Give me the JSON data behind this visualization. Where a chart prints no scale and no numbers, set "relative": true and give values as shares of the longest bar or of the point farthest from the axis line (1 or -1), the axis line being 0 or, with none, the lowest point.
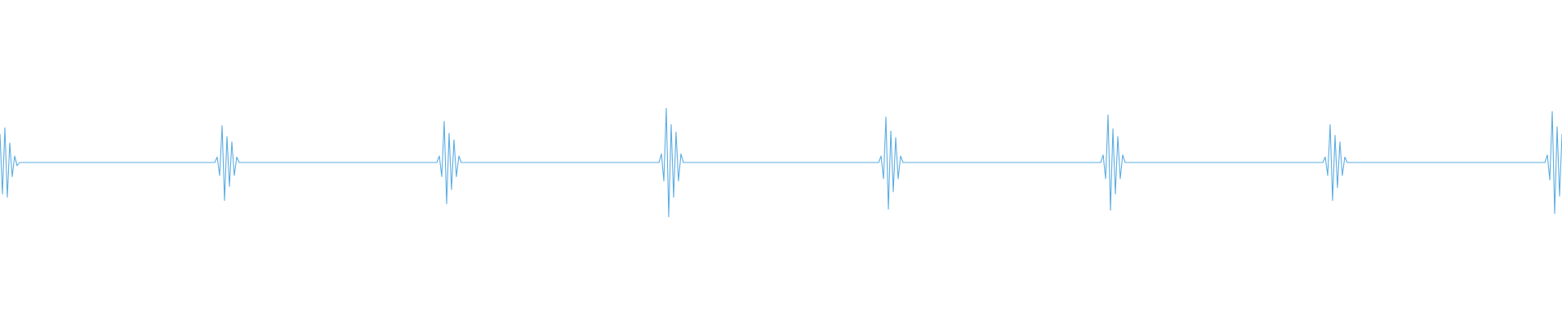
{
  "chart_data": {
    "type": "line",
    "relative": true,
    "color": "#5dade2",
    "categories": [
      null,
      null,
      null,
      null,
      null,
      null,
      null,
      null,
      null,
      null,
      null,
      null,
      null,
      null,
      null,
      null,
      null,
      null,
      null,
      null,
      null,
      null,
      null,
      null,
      null,
      null,
      null,
      null,
      null,
      null,
      null,
      null,
      null,
      null,
      null,
      null,
      null,
      null,
      null,
      null,
      null,
      null,
      null,
      null,
      null,
      null,
      null,
      null,
      null,
      null,
      null,
      null,
      null,
      null,
      null,
      null,
      null,
      null,
      null,
      null,
      null,
      null,
      null,
      null,
      null,
      null,
      null,
      null,
      null,
      null,
      null,
      null,
      null,
      null,
      null,
      null,
      null,
      null,
      null,
      null,
      null,
      null,
      null,
      null,
      null,
      null,
      null,
      null,
      null,
      null,
      null,
      null,
      null,
      null,
      null,
      null,
      null,
      null,
      null,
      null,
      null,
      null,
      null,
      null,
      null,
      null,
      null,
      null,
      null,
      null,
      null,
      null,
      null,
      null,
      null,
      null,
      null,
      null,
      null,
      null,
      null,
      null,
      null,
      null,
      null,
      null,
      null,
      null,
      null,
      null,
      null,
      null,
      null,
      null,
      null,
      null,
      null,
      null,
      null,
      null,
      null,
      null,
      null,
      null,
      null,
      null,
      null,
      null,
      null,
      null,
      null,
      null,
      null,
      null,
      null,
      null,
      null,
      null,
      null,
      null,
      null,
      null,
      null,
      null,
      null,
      null,
      null,
      null,
      null,
      null,
      null,
      null,
      null,
      null,
      null,
      null,
      null,
      null,
      null,
      null,
      null,
      null,
      null,
      null,
      null,
      null,
      null,
      null,
      null,
      null,
      null,
      null,
      null,
      null,
      null,
      null,
      null,
      null,
      null,
      null,
      null,
      null,
      null,
      null,
      null,
      null,
      null,
      null,
      null,
      null,
      null,
      null,
      null,
      null,
      null,
      null,
      null,
      null,
      null,
      null,
      null,
      null,
      null,
      null,
      null,
      null,
      null,
      null,
      null,
      null,
      null,
      null,
      null,
      null,
      null,
      null,
      null,
      null,
      null,
      null,
      null,
      null,
      null,
      null,
      null,
      null,
      null,
      null,
      null,
      null,
      null,
      null,
      null,
      null,
      null,
      null,
      null,
      null,
      null,
      null,
      null,
      null,
      null,
      null,
      null,
      null,
      null,
      null,
      null,
      null,
      null,
      null,
      null,
      null,
      null,
      null,
      null,
      null,
      null,
      null,
      null,
      null,
      null,
      null,
      null,
      null,
      null,
      null,
      null,
      null,
      null,
      null,
      null,
      null,
      null,
      null,
      null,
      null,
      null,
      null,
      null,
      null,
      null,
      null,
      null,
      null,
      null,
      null,
      null,
      null,
      null,
      null,
      null,
      null,
      null,
      null,
      null,
      null,
      null,
      null,
      null,
      null,
      null,
      null,
      null,
      null,
      null,
      null,
      null,
      null,
      null,
      null,
      null,
      null,
      null,
      null,
      null,
      null,
      null,
      null,
      null,
      null,
      null,
      null,
      null,
      null,
      null,
      null,
      null,
      null,
      null,
      null,
      null,
      null,
      null,
      null,
      null,
      null,
      null,
      null,
      null,
      null,
      null,
      null,
      null,
      null,
      null,
      null,
      null,
      null,
      null,
      null,
      null,
      null,
      null,
      null,
      null,
      null,
      null,
      null,
      null,
      null,
      null,
      null,
      null,
      null,
      null,
      null,
      null,
      null,
      null,
      null,
      null,
      null,
      null,
      null,
      null,
      null,
      null,
      null,
      null,
      null,
      null,
      null,
      null,
      null,
      null,
      null,
      null,
      null,
      null,
      null,
      null,
      null,
      null,
      null,
      null,
      null,
      null,
      null,
      null,
      null,
      null,
      null,
      null,
      null,
      null,
      null,
      null,
      null,
      null,
      null,
      null,
      null,
      null,
      null,
      null,
      null,
      null,
      null,
      null,
      null,
      null,
      null,
      null,
      null,
      null,
      null,
      null,
      null,
      null,
      null,
      null,
      null,
      null,
      null,
      null,
      null,
      null,
      null,
      null,
      null,
      null,
      null,
      null,
      null,
      null,
      null,
      null,
      null,
      null,
      null,
      null,
      null,
      null,
      null,
      null,
      null,
      null,
      null,
      null,
      null,
      null,
      null,
      null,
      null,
      null,
      null,
      null,
      null,
      null,
      null,
      null,
      null,
      null,
      null,
      null,
      null,
      null,
      null,
      null,
      null,
      null,
      null,
      null,
      null,
      null,
      null,
      null,
      null,
      null,
      null,
      null,
      null,
      null,
      null,
      null,
      null,
      null,
      null,
      null,
      null,
      null,
      null,
      null,
      null,
      null,
      null,
      null,
      null,
      null,
      null,
      null,
      null,
      null,
      null,
      null,
      null,
      null,
      null,
      null,
      null,
      null,
      null,
      null,
      null,
      null,
      null,
      null,
      null,
      null,
      null,
      null,
      null,
      null,
      null,
      null,
      null,
      null,
      null,
      null,
      null,
      null,
      null,
      null,
      null,
      null,
      null,
      null,
      null,
      null,
      null,
      null,
      null,
      null,
      null,
      null,
      null,
      null,
      null,
      null,
      null,
      null,
      null,
      null,
      null,
      null,
      null,
      null,
      null,
      null,
      null,
      null,
      null,
      null,
      null,
      null,
      null,
      null,
      null,
      null,
      null,
      null,
      null,
      null,
      null,
      null,
      null,
      null,
      null,
      null,
      null,
      null,
      null,
      null,
      null,
      null,
      null,
      null,
      null,
      null,
      null,
      null,
      null,
      null,
      null,
      null,
      null,
      null,
      null,
      null,
      null,
      null,
      null,
      null,
      null,
      null,
      null,
      null,
      null,
      null
    ],
    "values": [
      0.76,
      0.21,
      0.82,
      0.18,
      0.68,
      0.37,
      0.56,
      0.47,
      0.5,
      0.5,
      0.5,
      0.5,
      0.5,
      0.5,
      0.5,
      0.5,
      0.5,
      0.5,
      0.5,
      0.5,
      0.5,
      0.5,
      0.5,
      0.5,
      0.5,
      0.5,
      0.5,
      0.5,
      0.5,
      0.5,
      0.5,
      0.5,
      0.5,
      0.5,
      0.5,
      0.5,
      0.5,
      0.5,
      0.5,
      0.5,
      0.5,
      0.5,
      0.5,
      0.5,
      0.5,
      0.5,
      0.5,
      0.5,
      0.5,
      0.5,
      0.5,
      0.5,
      0.5,
      0.5,
      0.5,
      0.5,
      0.5,
      0.5,
      0.5,
      0.5,
      0.5,
      0.5,
      0.5,
      0.5,
      0.5,
      0.5,
      0.5,
      0.5,
      0.5,
      0.5,
      0.5,
      0.5,
      0.5,
      0.5,
      0.5,
      0.5,
      0.5,
      0.5,
      0.5,
      0.5,
      0.5,
      0.5,
      0.5,
      0.5,
      0.5,
      0.5,
      0.5,
      0.5,
      0.5,
      0.55,
      0.38,
      0.84,
      0.15,
      0.74,
      0.28,
      0.69,
      0.38,
      0.55,
      0.5,
      0.5,
      0.5,
      0.5,
      0.5,
      0.5,
      0.5,
      0.5,
      0.5,
      0.5,
      0.5,
      0.5,
      0.5,
      0.5,
      0.5,
      0.5,
      0.5,
      0.5,
      0.5,
      0.5,
      0.5,
      0.5,
      0.5,
      0.5,
      0.5,
      0.5,
      0.5,
      0.5,
      0.5,
      0.5,
      0.5,
      0.5,
      0.5,
      0.5,
      0.5,
      0.5,
      0.5,
      0.5,
      0.5,
      0.5,
      0.5,
      0.5,
      0.5,
      0.5,
      0.5,
      0.5,
      0.5,
      0.5,
      0.5,
      0.5,
      0.5,
      0.5,
      0.5,
      0.5,
      0.5,
      0.5,
      0.5,
      0.5,
      0.5,
      0.5,
      0.5,
      0.5,
      0.5,
      0.5,
      0.5,
      0.5,
      0.5,
      0.5,
      0.5,
      0.5,
      0.5,
      0.5,
      0.5,
      0.5,
      0.5,
      0.5,
      0.5,
      0.5,
      0.5,
      0.5,
      0.5,
      0.5,
      0.56,
      0.37,
      0.88,
      0.12,
      0.77,
      0.25,
      0.71,
      0.37,
      0.56,
      0.5,
      0.5,
      0.5,
      0.5,
      0.5,
      0.5,
      0.5,
      0.5,
      0.5,
      0.5,
      0.5,
      0.5,
      0.5,
      0.5,
      0.5,
      0.5,
      0.5,
      0.5,
      0.5,
      0.5,
      0.5,
      0.5,
      0.5,
      0.5,
      0.5,
      0.5,
      0.5,
      0.5,
      0.5,
      0.5,
      0.5,
      0.5,
      0.5,
      0.5,
      0.5,
      0.5,
      0.5,
      0.5,
      0.5,
      0.5,
      0.5,
      0.5,
      0.5,
      0.5,
      0.5,
      0.5,
      0.5,
      0.5,
      0.5,
      0.5,
      0.5,
      0.5,
      0.5,
      0.5,
      0.5,
      0.5,
      0.5,
      0.5,
      0.5,
      0.5,
      0.5,
      0.5,
      0.5,
      0.5,
      0.5,
      0.5,
      0.5,
      0.5,
      0.5,
      0.5,
      0.5,
      0.5,
      0.5,
      0.5,
      0.5,
      0.5,
      0.5,
      0.5,
      0.5,
      0.5,
      0.5,
      0.5,
      0.58,
      0.33,
      1,
      0,
      0.85,
      0.18,
      0.78,
      0.33,
      0.58,
      0.5,
      0.5,
      0.5,
      0.5,
      0.5,
      0.5,
      0.5,
      0.5,
      0.5,
      0.5,
      0.5,
      0.5,
      0.5,
      0.5,
      0.5,
      0.5,
      0.5,
      0.5,
      0.5,
      0.5,
      0.5,
      0.5,
      0.5,
      0.5,
      0.5,
      0.5,
      0.5,
      0.5,
      0.5,
      0.5,
      0.5,
      0.5,
      0.5,
      0.5,
      0.5,
      0.5,
      0.5,
      0.5,
      0.5,
      0.5,
      0.5,
      0.5,
      0.5,
      0.5,
      0.5,
      0.5,
      0.5,
      0.5,
      0.5,
      0.5,
      0.5,
      0.5,
      0.5,
      0.5,
      0.5,
      0.5,
      0.5,
      0.5,
      0.5,
      0.5,
      0.5,
      0.5,
      0.5,
      0.5,
      0.5,
      0.5,
      0.5,
      0.5,
      0.5,
      0.5,
      0.5,
      0.5,
      0.5,
      0.5,
      0.5,
      0.5,
      0.5,
      0.5,
      0.5,
      0.5,
      0.5,
      0.56,
      0.35,
      0.92,
      0.07,
      0.79,
      0.23,
      0.73,
      0.35,
      0.56,
      0.5,
      0.5,
      0.5,
      0.5,
      0.5,
      0.5,
      0.5,
      0.5,
      0.5,
      0.5,
      0.5,
      0.5,
      0.5,
      0.5,
      0.5,
      0.5,
      0.5,
      0.5,
      0.5,
      0.5,
      0.5,
      0.5,
      0.5,
      0.5,
      0.5,
      0.5,
      0.5,
      0.5,
      0.5,
      0.5,
      0.5,
      0.5,
      0.5,
      0.5,
      0.5,
      0.5,
      0.5,
      0.5,
      0.5,
      0.5,
      0.5,
      0.5,
      0.5,
      0.5,
      0.5,
      0.5,
      0.5,
      0.5,
      0.5,
      0.5,
      0.5,
      0.5,
      0.5,
      0.5,
      0.5,
      0.5,
      0.5,
      0.5,
      0.5,
      0.5,
      0.5,
      0.5,
      0.5,
      0.5,
      0.5,
      0.5,
      0.5,
      0.5,
      0.5,
      0.5,
      0.5,
      0.5,
      0.5,
      0.5,
      0.5,
      0.5,
      0.5,
      0.5,
      0.5,
      0.5,
      0.5,
      0.5,
      0.57,
      0.35,
      0.94,
      0.06,
      0.81,
      0.21,
      0.74,
      0.35,
      0.57,
      0.5,
      0.5,
      0.5,
      0.5,
      0.5,
      0.5,
      0.5,
      0.5,
      0.5,
      0.5,
      0.5,
      0.5,
      0.5,
      0.5,
      0.5,
      0.5,
      0.5,
      0.5,
      0.5,
      0.5,
      0.5,
      0.5,
      0.5,
      0.5,
      0.5,
      0.5,
      0.5,
      0.5,
      0.5,
      0.5,
      0.5,
      0.5,
      0.5,
      0.5,
      0.5,
      0.5,
      0.5,
      0.5,
      0.5,
      0.5,
      0.5,
      0.5,
      0.5,
      0.5,
      0.5,
      0.5,
      0.5,
      0.5,
      0.5,
      0.5,
      0.5,
      0.5,
      0.5,
      0.5,
      0.5,
      0.5,
      0.5,
      0.5,
      0.5,
      0.5,
      0.5,
      0.5,
      0.5,
      0.5,
      0.5,
      0.5,
      0.5,
      0.5,
      0.5,
      0.5,
      0.5,
      0.5,
      0.5,
      0.5,
      0.5,
      0.5,
      0.5,
      0.5,
      0.5,
      0.5,
      0.5,
      0.5,
      0.55,
      0.38,
      0.85,
      0.15,
      0.75,
      0.27,
      0.69,
      0.38,
      0.55,
      0.5,
      0.5,
      0.5,
      0.5,
      0.5,
      0.5,
      0.5,
      0.5,
      0.5,
      0.5,
      0.5,
      0.5,
      0.5,
      0.5,
      0.5,
      0.5,
      0.5,
      0.5,
      0.5,
      0.5,
      0.5,
      0.5,
      0.5,
      0.5,
      0.5,
      0.5,
      0.5,
      0.5,
      0.5,
      0.5,
      0.5,
      0.5,
      0.5,
      0.5,
      0.5,
      0.5,
      0.5,
      0.5,
      0.5,
      0.5,
      0.5,
      0.5,
      0.5,
      0.5,
      0.5,
      0.5,
      0.5,
      0.5,
      0.5,
      0.5,
      0.5,
      0.5,
      0.5,
      0.5,
      0.5,
      0.5,
      0.5,
      0.5,
      0.5,
      0.5,
      0.5,
      0.5,
      0.5,
      0.5,
      0.5,
      0.5,
      0.5,
      0.5,
      0.5,
      0.5,
      0.5,
      0.5,
      0.5,
      0.5,
      0.5,
      0.5,
      0.5,
      0.5,
      0.5,
      0.5,
      0.5,
      0.5,
      0.57,
      0.34,
      0.97,
      0.03,
      0.83,
      0.19,
      0.76
    ]
  }
}
